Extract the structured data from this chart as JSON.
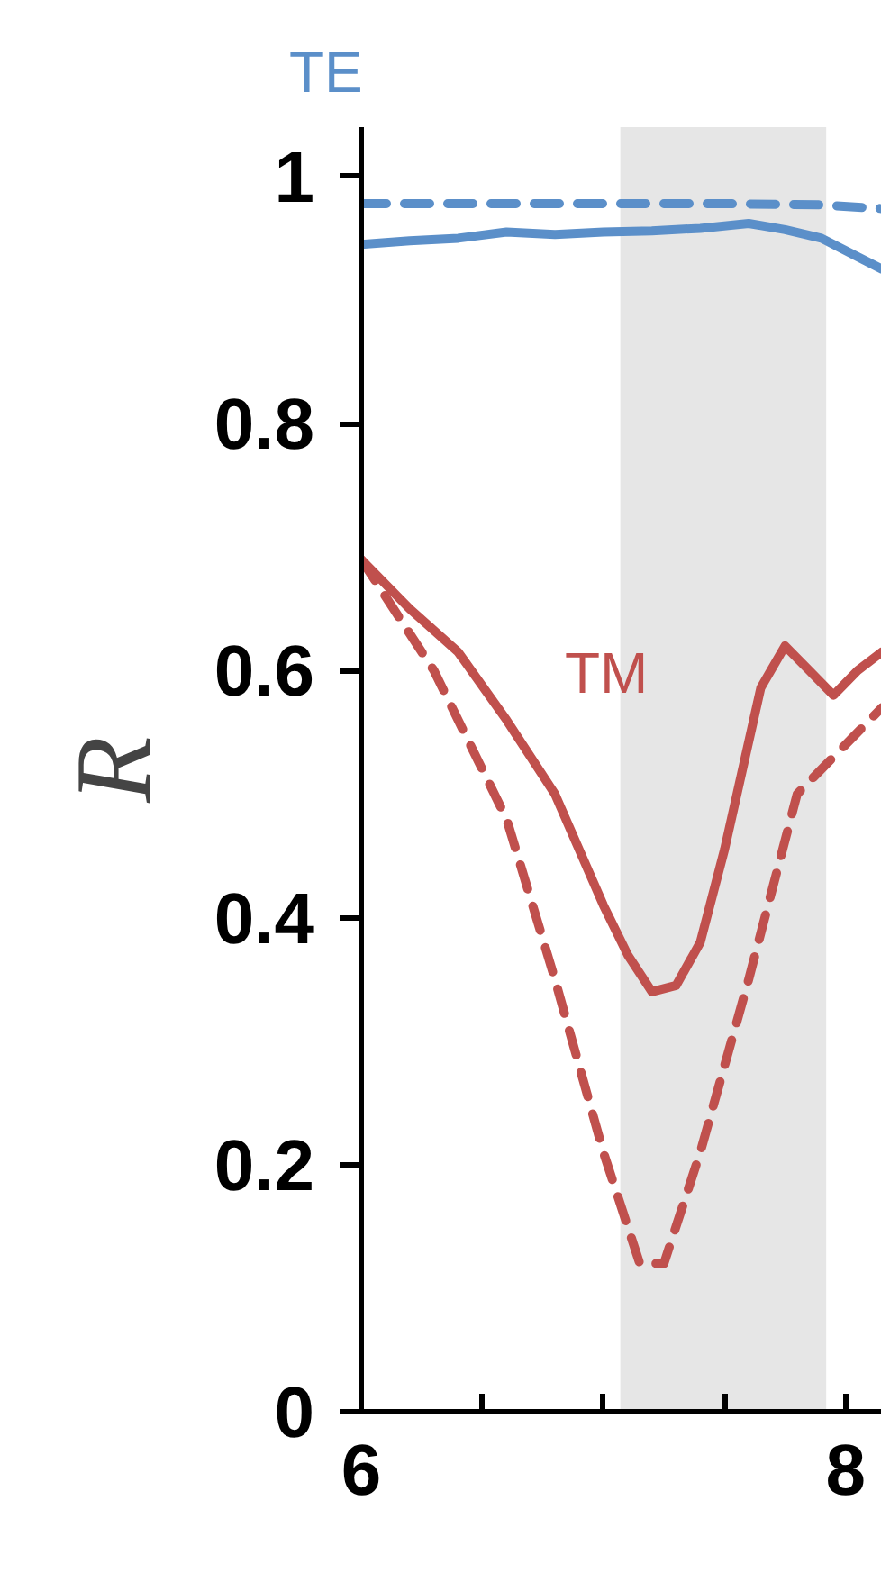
{
  "chart_data": {
    "type": "line",
    "ylabel": "R",
    "xlim": [
      6,
      8.15
    ],
    "ylim": [
      0,
      1.04
    ],
    "xticks": [
      6,
      {
        "value": 6.5,
        "label": null
      },
      {
        "value": 7,
        "label": null
      },
      {
        "value": 7.5,
        "label": null
      },
      8
    ],
    "yticks": [
      0,
      0.2,
      0.4,
      0.6,
      0.8,
      1
    ],
    "grid": false,
    "bands": [
      {
        "axis": "x",
        "from": 7.07,
        "to": 7.92,
        "color": "#e6e6e6"
      }
    ],
    "annotations": [
      "TE",
      "TM"
    ],
    "series": [
      {
        "color": "#5b8fc9",
        "line_style": "dashed",
        "x": [
          6,
          6.5,
          7,
          7.5,
          7.9,
          8.15
        ],
        "values": [
          0.978,
          0.978,
          0.978,
          0.978,
          0.977,
          0.974
        ]
      },
      {
        "color": "#5b8fc9",
        "line_style": "solid",
        "x": [
          6,
          6.2,
          6.4,
          6.6,
          6.8,
          7,
          7.2,
          7.4,
          7.6,
          7.75,
          7.9,
          8.05,
          8.15
        ],
        "values": [
          0.945,
          0.948,
          0.95,
          0.955,
          0.953,
          0.955,
          0.956,
          0.958,
          0.962,
          0.957,
          0.95,
          0.935,
          0.925
        ]
      },
      {
        "color": "#c0504d",
        "line_style": "solid",
        "x": [
          6,
          6.2,
          6.4,
          6.6,
          6.8,
          7,
          7.1,
          7.2,
          7.3,
          7.4,
          7.5,
          7.65,
          7.75,
          7.85,
          7.95,
          8.05,
          8.15
        ],
        "values": [
          0.69,
          0.65,
          0.615,
          0.56,
          0.5,
          0.41,
          0.37,
          0.34,
          0.345,
          0.38,
          0.455,
          0.586,
          0.62,
          0.6,
          0.58,
          0.6,
          0.615
        ]
      },
      {
        "color": "#c0504d",
        "line_style": "dashed",
        "x": [
          6,
          6.3,
          6.6,
          6.8,
          7,
          7.15,
          7.25,
          7.4,
          7.6,
          7.8,
          7.95,
          8.15
        ],
        "values": [
          0.69,
          0.6,
          0.48,
          0.35,
          0.21,
          0.12,
          0.12,
          0.21,
          0.35,
          0.5,
          0.53,
          0.57
        ]
      }
    ]
  }
}
